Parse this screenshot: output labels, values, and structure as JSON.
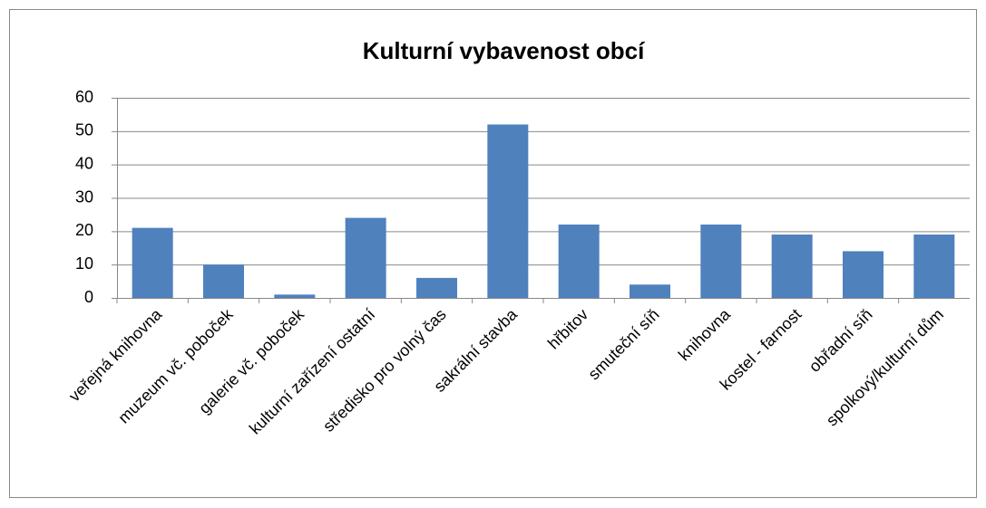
{
  "chart_data": {
    "type": "bar",
    "title": "Kulturní vybavenost obcí",
    "categories": [
      "veřejná knihovna",
      "muzeum vč. poboček",
      "galerie vč. poboček",
      "kulturní zařízení ostatní",
      "středisko pro volný čas",
      "sakrální stavba",
      "hřbitov",
      "smuteční síň",
      "knihovna",
      "kostel - farnost",
      "obřadní síň",
      "spolkový/kulturní dům"
    ],
    "values": [
      21,
      10,
      1,
      24,
      6,
      52,
      22,
      4,
      22,
      19,
      14,
      19
    ],
    "color": "#4f81bd",
    "ylim": [
      0,
      60
    ],
    "yticks": [
      0,
      10,
      20,
      30,
      40,
      50,
      60
    ],
    "grid": true
  }
}
